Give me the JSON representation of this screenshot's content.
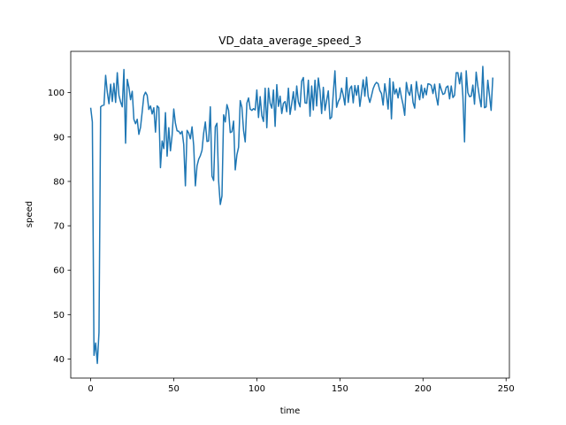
{
  "chart_data": {
    "type": "line",
    "title": "VD_data_average_speed_3",
    "xlabel": "time",
    "ylabel": "speed",
    "xlim": [
      -12,
      252
    ],
    "ylim": [
      35.7,
      109.3
    ],
    "xticks": [
      0,
      50,
      100,
      150,
      200,
      250
    ],
    "yticks": [
      40,
      50,
      60,
      70,
      80,
      90,
      100
    ],
    "grid": false,
    "color": "#1f77b4",
    "series": [
      {
        "values": [
          96.6,
          93.4,
          40.8,
          43.6,
          39.0,
          46.0,
          96.8,
          97.1,
          97.2,
          103.9,
          100.1,
          97.5,
          101.9,
          98.0,
          102.1,
          97.8,
          104.5,
          99.4,
          97.9,
          96.8,
          105.2,
          88.6,
          103.0,
          101.2,
          98.4,
          100.3,
          94.0,
          93.0,
          94.0,
          90.6,
          92.2,
          95.7,
          99.3,
          100.1,
          99.4,
          96.2,
          97.0,
          95.2,
          96.6,
          91.1,
          97.0,
          96.6,
          83.1,
          89.1,
          87.4,
          95.5,
          85.7,
          92.1,
          86.9,
          90.4,
          96.3,
          93.1,
          91.4,
          91.3,
          90.7,
          91.3,
          88.3,
          79.0,
          91.5,
          90.9,
          89.6,
          92.3,
          88.0,
          79.0,
          83.5,
          85.0,
          85.8,
          87.0,
          90.9,
          93.4,
          89.0,
          89.1,
          96.8,
          81.2,
          80.2,
          92.3,
          93.1,
          80.1,
          74.8,
          76.7,
          95.0,
          93.4,
          97.3,
          96.0,
          91.0,
          91.2,
          93.6,
          82.6,
          86.0,
          87.7,
          98.2,
          96.7,
          91.5,
          88.9,
          97.6,
          98.8,
          96.3,
          96.0,
          96.4,
          96.1,
          100.6,
          94.4,
          99.1,
          94.8,
          93.5,
          101.0,
          92.1,
          101.0,
          97.6,
          96.5,
          100.6,
          92.4,
          101.8,
          96.9,
          99.2,
          95.3,
          97.6,
          98.0,
          95.7,
          101.0,
          95.1,
          97.5,
          100.2,
          96.1,
          101.5,
          97.9,
          96.8,
          102.6,
          103.4,
          97.7,
          97.6,
          102.8,
          94.7,
          101.5,
          96.1,
          102.8,
          97.0,
          103.3,
          100.4,
          95.3,
          101.2,
          96.0,
          98.2,
          100.4,
          94.1,
          94.5,
          99.8,
          104.9,
          96.7,
          98.0,
          98.7,
          101.0,
          99.4,
          97.2,
          103.4,
          97.8,
          100.9,
          101.5,
          97.7,
          101.6,
          99.4,
          101.6,
          96.9,
          99.8,
          102.9,
          99.2,
          103.5,
          99.2,
          97.8,
          99.3,
          100.9,
          101.8,
          102.3,
          102.0,
          100.5,
          99.8,
          97.2,
          102.0,
          99.5,
          96.3,
          103.2,
          94.1,
          102.4,
          99.7,
          100.8,
          98.8,
          101.1,
          99.0,
          97.3,
          94.9,
          102.3,
          100.2,
          99.4,
          101.8,
          97.8,
          96.5,
          102.5,
          99.9,
          98.4,
          101.7,
          98.8,
          101.0,
          99.5,
          102.0,
          101.9,
          101.6,
          99.8,
          101.9,
          99.0,
          97.2,
          102.0,
          100.7,
          99.6,
          99.8,
          101.2,
          101.5,
          98.6,
          101.5,
          98.9,
          99.4,
          104.5,
          104.5,
          102.0,
          104.5,
          99.2,
          88.9,
          104.9,
          100.0,
          99.1,
          99.2,
          101.7,
          97.4,
          104.6,
          101.5,
          98.9,
          96.8,
          105.9,
          96.6,
          96.8,
          102.8,
          99.4,
          96.0,
          103.4
        ]
      }
    ]
  }
}
